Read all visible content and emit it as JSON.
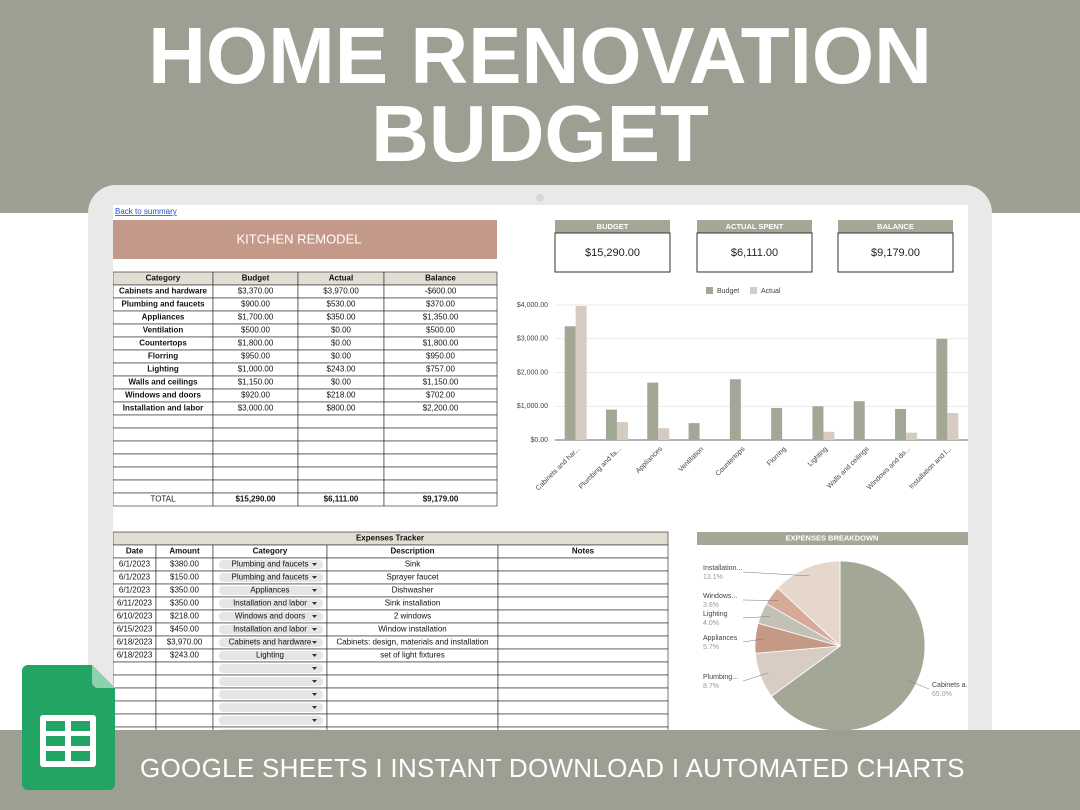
{
  "header": {
    "title_lines": [
      "HOME RENOVATION",
      "BUDGET"
    ]
  },
  "footer": {
    "tagline": "GOOGLE SHEETS I INSTANT DOWNLOAD I AUTOMATED CHARTS"
  },
  "sheet": {
    "link": "Back to summary",
    "title": "KITCHEN REMODEL",
    "summary": [
      {
        "label": "BUDGET",
        "value": "$15,290.00"
      },
      {
        "label": "ACTUAL SPENT",
        "value": "$6,111.00"
      },
      {
        "label": "BALANCE",
        "value": "$9,179.00"
      }
    ],
    "budget_table": {
      "headers": [
        "Category",
        "Budget",
        "Actual",
        "Balance"
      ],
      "rows": [
        [
          "Cabinets and hardware",
          "$3,370.00",
          "$3,970.00",
          "-$600.00"
        ],
        [
          "Plumbing and faucets",
          "$900.00",
          "$530.00",
          "$370.00"
        ],
        [
          "Appliances",
          "$1,700.00",
          "$350.00",
          "$1,350.00"
        ],
        [
          "Ventilation",
          "$500.00",
          "$0.00",
          "$500.00"
        ],
        [
          "Countertops",
          "$1,800.00",
          "$0.00",
          "$1,800.00"
        ],
        [
          "Florring",
          "$950.00",
          "$0.00",
          "$950.00"
        ],
        [
          "Lighting",
          "$1,000.00",
          "$243.00",
          "$757.00"
        ],
        [
          "Walls and ceilings",
          "$1,150.00",
          "$0.00",
          "$1,150.00"
        ],
        [
          "Windows and doors",
          "$920.00",
          "$218.00",
          "$702.00"
        ],
        [
          "Installation and labor",
          "$3,000.00",
          "$800.00",
          "$2,200.00"
        ]
      ],
      "total": [
        "TOTAL",
        "$15,290.00",
        "$6,111.00",
        "$9,179.00"
      ]
    },
    "expenses": {
      "title": "Expenses Tracker",
      "headers": [
        "Date",
        "Amount",
        "Category",
        "Description",
        "Notes"
      ],
      "rows": [
        [
          "6/1/2023",
          "$380.00",
          "Plumbing and faucets",
          "Sink"
        ],
        [
          "6/1/2023",
          "$150.00",
          "Plumbing and faucets",
          "Sprayer faucet"
        ],
        [
          "6/1/2023",
          "$350.00",
          "Appliances",
          "Dishwasher"
        ],
        [
          "6/11/2023",
          "$350.00",
          "Installation and labor",
          "Sink installation"
        ],
        [
          "6/10/2023",
          "$218.00",
          "Windows and doors",
          "2 windows"
        ],
        [
          "6/15/2023",
          "$450.00",
          "Installation and labor",
          "Window installation"
        ],
        [
          "6/18/2023",
          "$3,970.00",
          "Cabinets and hardware",
          "Cabinets: design, materials and installation"
        ],
        [
          "6/18/2023",
          "$243.00",
          "Lighting",
          "set of light fixtures"
        ]
      ]
    }
  },
  "chart_data": [
    {
      "type": "bar",
      "categories": [
        "Cabinets and har...",
        "Plumbing and fa...",
        "Appliances",
        "Ventilation",
        "Countertops",
        "Florring",
        "Lighting",
        "Walls and ceilings",
        "Windows and do...",
        "Installation and l..."
      ],
      "series": [
        {
          "name": "Budget",
          "color": "#a3a796",
          "values": [
            3370,
            900,
            1700,
            500,
            1800,
            950,
            1000,
            1150,
            920,
            3000
          ]
        },
        {
          "name": "Actual",
          "color": "#d6cbc1",
          "values": [
            3970,
            530,
            350,
            0,
            0,
            0,
            243,
            0,
            218,
            800
          ]
        }
      ],
      "ylim": [
        0,
        4000
      ],
      "yticks": [
        {
          "value": 0,
          "label": "$0.00"
        },
        {
          "value": 1000,
          "label": "$1,000.00"
        },
        {
          "value": 2000,
          "label": "$2,000.00"
        },
        {
          "value": 3000,
          "label": "$3,000.00"
        },
        {
          "value": 4000,
          "label": "$4,000.00"
        }
      ],
      "grid": true,
      "legend": "top"
    },
    {
      "type": "pie",
      "title": "EXPENSES BREAKDOWN",
      "categories": [
        "Cabinets a...",
        "Plumbing...",
        "Appliances",
        "Lighting",
        "Windows...",
        "Installation..."
      ],
      "values": [
        65.0,
        8.7,
        5.7,
        4.0,
        3.6,
        13.1
      ],
      "value_labels": [
        "65.0%",
        "8.7%",
        "5.7%",
        "4.0%",
        "3.6%",
        "13.1%"
      ],
      "colors": [
        "#a3a796",
        "#d8cdc4",
        "#c49a86",
        "#c3c1b5",
        "#d7a998",
        "#e6d7cd"
      ]
    }
  ]
}
